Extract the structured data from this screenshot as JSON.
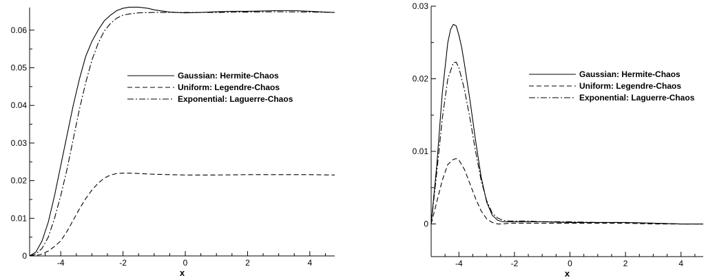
{
  "chart_data": [
    {
      "type": "line",
      "title": "",
      "xlabel": "x",
      "ylabel": "",
      "xlim": [
        -5,
        4.8
      ],
      "ylim": [
        0,
        0.066
      ],
      "xticks": [
        -4,
        -2,
        0,
        2,
        4
      ],
      "xtick_labels": [
        "-4",
        "-2",
        "0",
        "2",
        "4"
      ],
      "yticks": [
        0,
        0.01,
        0.02,
        0.03,
        0.04,
        0.05,
        0.06
      ],
      "ytick_labels": [
        "0",
        "0.01",
        "0.02",
        "0.03",
        "0.04",
        "0.05",
        "0.06"
      ],
      "grid": false,
      "legend_position": "center-right",
      "series": [
        {
          "name": "Gaussian: Hermite-Chaos",
          "style": "solid",
          "x": [
            -5.0,
            -4.8,
            -4.6,
            -4.4,
            -4.2,
            -4.0,
            -3.8,
            -3.6,
            -3.4,
            -3.2,
            -3.0,
            -2.8,
            -2.6,
            -2.4,
            -2.2,
            -2.0,
            -1.8,
            -1.5,
            -1.2,
            -1.0,
            -0.5,
            0.0,
            0.5,
            1.0,
            1.5,
            2.0,
            2.5,
            3.0,
            3.5,
            4.0,
            4.5,
            4.8
          ],
          "y": [
            0.0,
            0.001,
            0.004,
            0.009,
            0.016,
            0.024,
            0.032,
            0.04,
            0.047,
            0.053,
            0.057,
            0.06,
            0.0625,
            0.064,
            0.0652,
            0.0658,
            0.0661,
            0.0661,
            0.0658,
            0.0654,
            0.0648,
            0.0646,
            0.0647,
            0.0649,
            0.065,
            0.065,
            0.0651,
            0.0652,
            0.0652,
            0.065,
            0.0648,
            0.0647
          ]
        },
        {
          "name": "Uniform: Legendre-Chaos",
          "style": "dashed",
          "x": [
            -5.0,
            -4.8,
            -4.6,
            -4.4,
            -4.2,
            -4.0,
            -3.8,
            -3.6,
            -3.4,
            -3.2,
            -3.0,
            -2.8,
            -2.6,
            -2.4,
            -2.2,
            -2.0,
            -1.8,
            -1.5,
            -1.0,
            -0.5,
            0.0,
            1.0,
            2.0,
            3.0,
            4.0,
            4.8
          ],
          "y": [
            0.0,
            0.0001,
            0.0005,
            0.0013,
            0.0025,
            0.004,
            0.0065,
            0.0095,
            0.0125,
            0.0152,
            0.0175,
            0.0193,
            0.0207,
            0.0215,
            0.0219,
            0.022,
            0.022,
            0.0219,
            0.0217,
            0.0216,
            0.0215,
            0.0215,
            0.0216,
            0.0216,
            0.0216,
            0.0215
          ]
        },
        {
          "name": "Exponential: Laguerre-Chaos",
          "style": "dashdot",
          "x": [
            -5.0,
            -4.8,
            -4.6,
            -4.4,
            -4.2,
            -4.0,
            -3.8,
            -3.6,
            -3.4,
            -3.2,
            -3.0,
            -2.8,
            -2.6,
            -2.4,
            -2.2,
            -2.0,
            -1.8,
            -1.5,
            -1.0,
            -0.5,
            0.0,
            1.0,
            2.0,
            3.0,
            4.0,
            4.8
          ],
          "y": [
            0.0,
            0.0005,
            0.002,
            0.005,
            0.01,
            0.016,
            0.023,
            0.031,
            0.039,
            0.046,
            0.052,
            0.0565,
            0.0598,
            0.0618,
            0.0632,
            0.064,
            0.0643,
            0.0646,
            0.0647,
            0.0647,
            0.0647,
            0.0647,
            0.0648,
            0.0649,
            0.0648,
            0.0647
          ]
        }
      ]
    },
    {
      "type": "line",
      "title": "",
      "xlabel": "x",
      "ylabel": "",
      "xlim": [
        -5,
        4.8
      ],
      "ylim": [
        -0.0045,
        0.03
      ],
      "xticks": [
        -4,
        -2,
        0,
        2,
        4
      ],
      "xtick_labels": [
        "-4",
        "-2",
        "0",
        "2",
        "4"
      ],
      "yticks": [
        0,
        0.01,
        0.02,
        0.03
      ],
      "ytick_labels": [
        "0",
        "0.01",
        "0.02",
        "0.03"
      ],
      "grid": false,
      "legend_position": "top-right",
      "series": [
        {
          "name": "Gaussian: Hermite-Chaos",
          "style": "solid",
          "x": [
            -5.0,
            -4.8,
            -4.6,
            -4.4,
            -4.3,
            -4.2,
            -4.1,
            -4.0,
            -3.9,
            -3.8,
            -3.6,
            -3.4,
            -3.2,
            -3.0,
            -2.8,
            -2.6,
            -2.4,
            -2.2,
            -2.0,
            -1.5,
            -1.0,
            0.0,
            1.0,
            2.0,
            3.0,
            4.0,
            4.8
          ],
          "y": [
            0.0,
            0.008,
            0.018,
            0.025,
            0.0268,
            0.0275,
            0.0273,
            0.026,
            0.0243,
            0.022,
            0.017,
            0.0115,
            0.0065,
            0.003,
            0.0012,
            0.0005,
            0.0003,
            0.0003,
            0.0003,
            0.0003,
            0.0003,
            0.0002,
            0.0002,
            0.0002,
            0.0001,
            0.0,
            0.0
          ]
        },
        {
          "name": "Uniform: Legendre-Chaos",
          "style": "dashed",
          "x": [
            -5.0,
            -4.8,
            -4.6,
            -4.4,
            -4.2,
            -4.1,
            -4.0,
            -3.8,
            -3.6,
            -3.4,
            -3.2,
            -3.0,
            -2.8,
            -2.6,
            -2.4,
            -2.2,
            -2.0,
            -1.5,
            -1.0,
            0.0,
            1.0,
            2.0,
            3.0,
            4.0,
            4.8
          ],
          "y": [
            0.0,
            0.003,
            0.006,
            0.0082,
            0.0089,
            0.009,
            0.0088,
            0.0075,
            0.0055,
            0.0035,
            0.0018,
            0.0007,
            0.0002,
            0.0,
            0.0,
            0.0001,
            0.0001,
            0.0001,
            0.0001,
            0.0001,
            0.0001,
            0.0001,
            0.0,
            0.0,
            0.0
          ]
        },
        {
          "name": "Exponential: Laguerre-Chaos",
          "style": "dashdot",
          "x": [
            -5.0,
            -4.8,
            -4.6,
            -4.4,
            -4.2,
            -4.1,
            -4.0,
            -3.8,
            -3.6,
            -3.4,
            -3.2,
            -3.0,
            -2.8,
            -2.6,
            -2.4,
            -2.2,
            -2.0,
            -1.5,
            -1.0,
            0.0,
            1.0,
            2.0,
            3.0,
            4.0,
            4.8
          ],
          "y": [
            0.0,
            0.007,
            0.0145,
            0.02,
            0.0222,
            0.0223,
            0.0215,
            0.0185,
            0.0145,
            0.01,
            0.006,
            0.0032,
            0.0015,
            0.0008,
            0.0005,
            0.0004,
            0.0004,
            0.0004,
            0.0003,
            0.0003,
            0.0002,
            0.0002,
            0.0001,
            0.0,
            0.0
          ]
        }
      ]
    }
  ]
}
